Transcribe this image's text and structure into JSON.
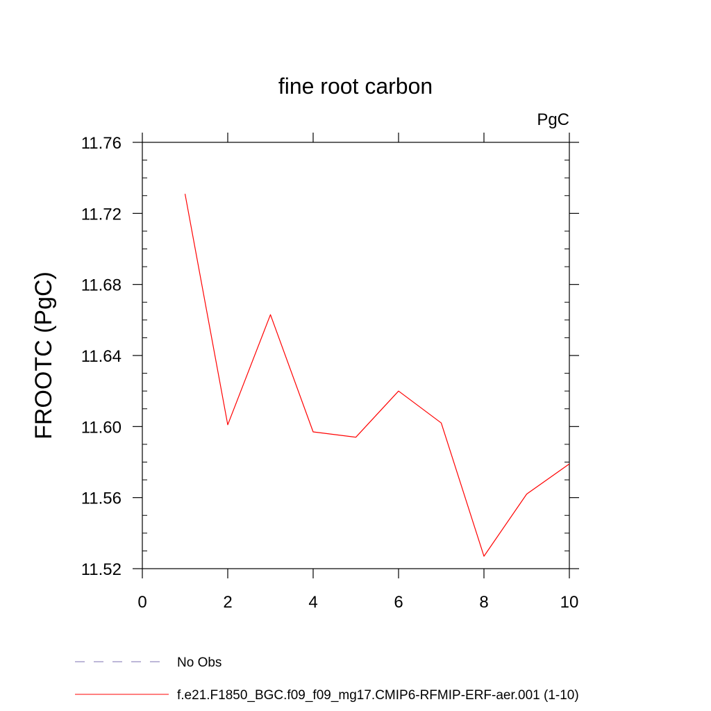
{
  "chart_data": {
    "type": "line",
    "title": "fine root carbon",
    "units_label": "PgC",
    "ylabel": "FROOTC  (PgC)",
    "xlabel": "",
    "xlim": [
      0,
      10
    ],
    "ylim": [
      11.52,
      11.76
    ],
    "x_ticks": [
      0,
      2,
      4,
      6,
      8,
      10
    ],
    "x_tick_labels": [
      "0",
      "2",
      "4",
      "6",
      "8",
      "10"
    ],
    "y_ticks": [
      11.52,
      11.56,
      11.6,
      11.64,
      11.68,
      11.72,
      11.76
    ],
    "y_tick_labels": [
      "11.52",
      "11.56",
      "11.60",
      "11.64",
      "11.68",
      "11.72",
      "11.76"
    ],
    "grid": false,
    "legend_position": "bottom-left",
    "series": [
      {
        "name": "f.e21.F1850_BGC.f09_f09_mg17.CMIP6-RFMIP-ERF-aer.001 (1-10)",
        "color": "#ff0000",
        "style": "solid",
        "x": [
          1,
          2,
          3,
          4,
          5,
          6,
          7,
          8,
          9,
          10
        ],
        "y": [
          11.731,
          11.601,
          11.663,
          11.597,
          11.594,
          11.62,
          11.602,
          11.527,
          11.562,
          11.579
        ]
      }
    ],
    "legend": [
      {
        "label": "No Obs",
        "color": "#7b6fb0",
        "style": "dashed"
      },
      {
        "label": "f.e21.F1850_BGC.f09_f09_mg17.CMIP6-RFMIP-ERF-aer.001 (1-10)",
        "color": "#ff0000",
        "style": "solid"
      }
    ]
  }
}
